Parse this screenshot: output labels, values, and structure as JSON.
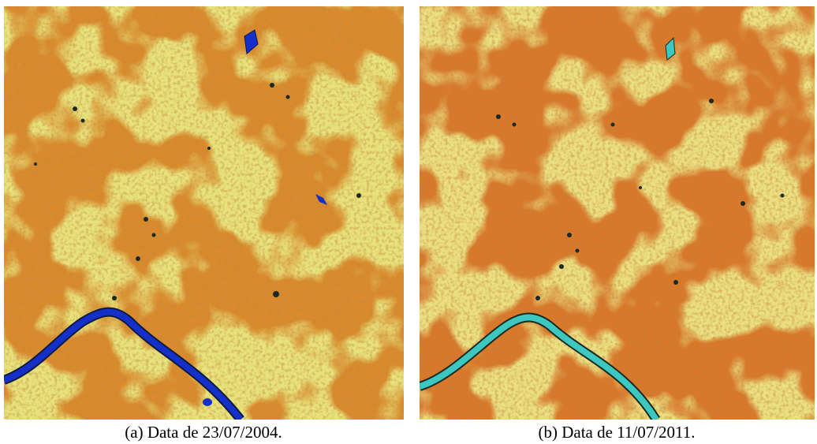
{
  "figures": [
    {
      "caption": "(a) Data de 23/07/2004."
    },
    {
      "caption": "(b) Data de 11/07/2011."
    }
  ]
}
